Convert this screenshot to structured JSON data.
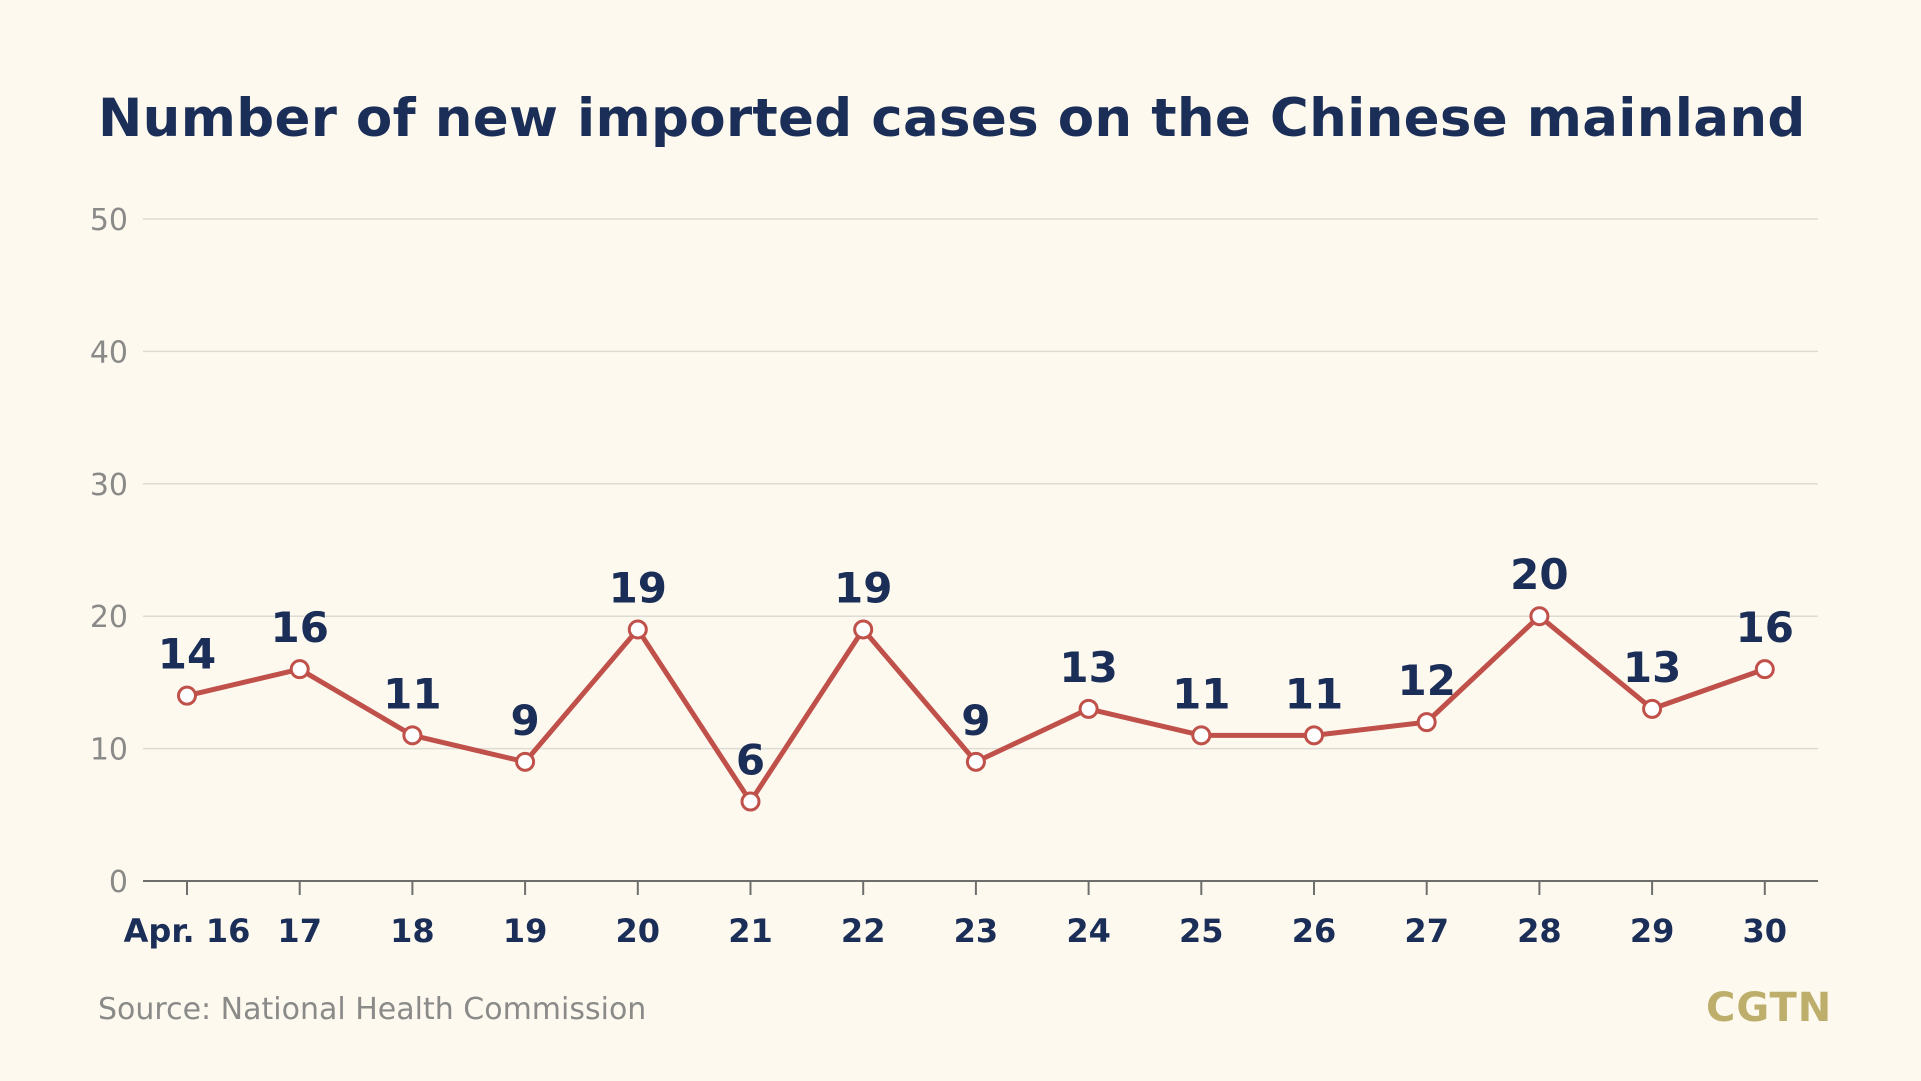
{
  "chart_data": {
    "type": "line",
    "title": "Number of new imported cases on the Chinese mainland",
    "categories": [
      "Apr. 16",
      "17",
      "18",
      "19",
      "20",
      "21",
      "22",
      "23",
      "24",
      "25",
      "26",
      "27",
      "28",
      "29",
      "30"
    ],
    "series": [
      {
        "values": [
          14,
          16,
          11,
          9,
          19,
          6,
          19,
          9,
          13,
          11,
          11,
          12,
          20,
          13,
          16
        ]
      }
    ],
    "ylim": [
      0,
      50
    ],
    "yticks": [
      0,
      10,
      20,
      30,
      40,
      50
    ],
    "grid": true,
    "data_labels": true,
    "colors": {
      "line": "#c0504a",
      "marker_fill": "#ffffff",
      "label": "#1a2e57",
      "axis_text": "#8a8a88",
      "grid": "#dddcd4"
    }
  },
  "source": "Source: National Health Commission",
  "logo": "CGTN"
}
